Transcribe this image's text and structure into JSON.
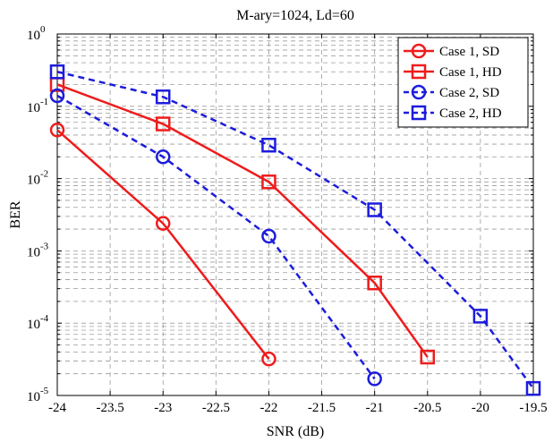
{
  "chart_data": {
    "type": "line",
    "title": "M-ary=1024, Ld=60",
    "xlabel": "SNR (dB)",
    "ylabel": "BER",
    "xlim": [
      -24,
      -19.5
    ],
    "ylim": [
      1e-05,
      1
    ],
    "yscale": "log",
    "grid": true,
    "legend_position": "top-right",
    "x_ticks": [
      "-24",
      "-23.5",
      "-23",
      "-22.5",
      "-22",
      "-21.5",
      "-21",
      "-20.5",
      "-20",
      "-19.5"
    ],
    "x_tick_values": [
      -24,
      -23.5,
      -23,
      -22.5,
      -22,
      -21.5,
      -21,
      -20.5,
      -20,
      -19.5
    ],
    "y_ticks": [
      {
        "base": "10",
        "exp": "-5",
        "value": 1e-05
      },
      {
        "base": "10",
        "exp": "-4",
        "value": 0.0001
      },
      {
        "base": "10",
        "exp": "-3",
        "value": 0.001
      },
      {
        "base": "10",
        "exp": "-2",
        "value": 0.01
      },
      {
        "base": "10",
        "exp": "-1",
        "value": 0.1
      },
      {
        "base": "10",
        "exp": "0",
        "value": 1
      }
    ],
    "series": [
      {
        "name": "Case 1, SD",
        "color": "#ee1c1c",
        "dash": "solid",
        "marker": "circle",
        "x": [
          -24,
          -23,
          -22
        ],
        "y": [
          0.047,
          0.0024,
          3.2e-05
        ]
      },
      {
        "name": "Case 1, HD",
        "color": "#ee1c1c",
        "dash": "solid",
        "marker": "square",
        "x": [
          -24,
          -23,
          -22,
          -21,
          -20.5
        ],
        "y": [
          0.2,
          0.057,
          0.009,
          0.00036,
          3.4e-05
        ]
      },
      {
        "name": "Case 2, SD",
        "color": "#1c1cdd",
        "dash": "dashed",
        "marker": "circle",
        "x": [
          -24,
          -23,
          -22,
          -21
        ],
        "y": [
          0.14,
          0.02,
          0.0016,
          1.7e-05
        ]
      },
      {
        "name": "Case 2, HD",
        "color": "#1c1cdd",
        "dash": "dashed",
        "marker": "square",
        "x": [
          -24,
          -23,
          -22,
          -21,
          -20,
          -19.5
        ],
        "y": [
          0.3,
          0.135,
          0.029,
          0.0037,
          0.000125,
          1.25e-05
        ]
      }
    ]
  }
}
